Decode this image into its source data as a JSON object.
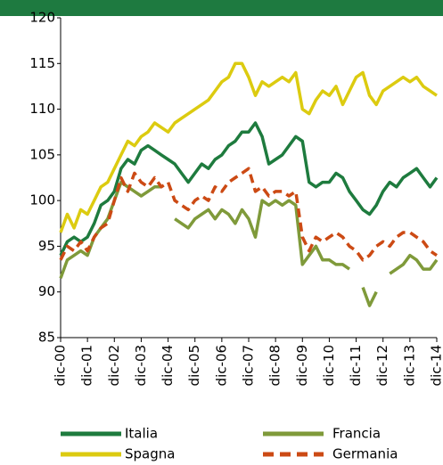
{
  "chart_data": {
    "type": "line",
    "x": [
      "2000-12",
      "2001-03",
      "2001-06",
      "2001-09",
      "2001-12",
      "2002-03",
      "2002-06",
      "2002-09",
      "2002-12",
      "2003-03",
      "2003-06",
      "2003-09",
      "2003-12",
      "2004-03",
      "2004-06",
      "2004-09",
      "2004-12",
      "2005-03",
      "2005-06",
      "2005-09",
      "2005-12",
      "2006-03",
      "2006-06",
      "2006-09",
      "2006-12",
      "2007-03",
      "2007-06",
      "2007-09",
      "2007-12",
      "2008-03",
      "2008-06",
      "2008-09",
      "2008-12",
      "2009-03",
      "2009-06",
      "2009-09",
      "2009-12",
      "2010-03",
      "2010-06",
      "2010-09",
      "2010-12",
      "2011-03",
      "2011-06",
      "2011-09",
      "2011-12",
      "2012-03",
      "2012-06",
      "2012-09",
      "2012-12",
      "2013-03",
      "2013-06",
      "2013-09",
      "2013-12",
      "2014-03",
      "2014-06",
      "2014-09",
      "2014-12"
    ],
    "series": [
      {
        "name": "Italia",
        "color": "#1e7b3e",
        "values": [
          94,
          95.5,
          96,
          95.5,
          96,
          97.5,
          99.5,
          100,
          101,
          103.5,
          104.5,
          104,
          105.5,
          106,
          105.5,
          105,
          104.5,
          104,
          103,
          102,
          103,
          104,
          103.5,
          104.5,
          105,
          106,
          106.5,
          107.5,
          107.5,
          108.5,
          107,
          104,
          104.5,
          105,
          106,
          107,
          106.5,
          102,
          101.5,
          102,
          102,
          103,
          102.5,
          101,
          100,
          99,
          98.5,
          99.5,
          101,
          102,
          101.5,
          102.5,
          103,
          103.5,
          102.5,
          101.5,
          102.5
        ]
      },
      {
        "name": "Francia",
        "color": "#7f9a3a",
        "values": [
          91.5,
          93.5,
          94,
          94.5,
          94,
          96,
          97,
          98,
          100,
          102,
          101.5,
          101,
          100.5,
          101,
          101.5,
          101.5,
          null,
          98,
          97.5,
          97,
          98,
          98.5,
          99,
          98,
          99,
          98.5,
          97.5,
          99,
          98,
          96,
          100,
          99.5,
          100,
          99.5,
          100,
          99.5,
          93,
          94,
          95,
          93.5,
          93.5,
          93,
          93,
          92.5,
          null,
          90.5,
          88.5,
          90,
          null,
          92,
          92.5,
          93,
          94,
          93.5,
          92.5,
          92.5,
          93.5
        ]
      },
      {
        "name": "Spagna",
        "color": "#dccb10",
        "values": [
          96.5,
          98.5,
          97,
          99,
          98.5,
          100,
          101.5,
          102,
          103.5,
          105,
          106.5,
          106,
          107,
          107.5,
          108.5,
          108,
          107.5,
          108.5,
          109,
          109.5,
          110,
          110.5,
          111,
          112,
          113,
          113.5,
          115,
          115,
          113.5,
          111.5,
          113,
          112.5,
          113,
          113.5,
          113,
          114,
          110,
          109.5,
          111,
          112,
          111.5,
          112.5,
          110.5,
          112,
          113.5,
          114,
          111.5,
          110.5,
          112,
          112.5,
          113,
          113.5,
          113,
          113.5,
          112.5,
          112,
          111.5
        ]
      },
      {
        "name": "Germania",
        "color": "#cc4a14",
        "dashed": true,
        "values": [
          93.5,
          95,
          94.5,
          95.5,
          94.5,
          96,
          97,
          97.5,
          100,
          102.5,
          101,
          103,
          102,
          101.5,
          102.5,
          101.5,
          102,
          100,
          99.5,
          99,
          100,
          100.5,
          100,
          101.5,
          101,
          102,
          102.5,
          103,
          103.5,
          101,
          101.5,
          100.5,
          101,
          101,
          100.5,
          101,
          96,
          94.5,
          96,
          95.5,
          96,
          96.5,
          96,
          95,
          94.5,
          93.5,
          94,
          95,
          95.5,
          95,
          96,
          96.5,
          96.5,
          96,
          95.5,
          94.5,
          94
        ]
      }
    ],
    "xlim": [
      "2000-12",
      "2014-12"
    ],
    "xticks": [
      {
        "value": "2000-12",
        "label": "dic-00"
      },
      {
        "value": "2001-12",
        "label": "dic-01"
      },
      {
        "value": "2002-12",
        "label": "dic-02"
      },
      {
        "value": "2003-12",
        "label": "dic-03"
      },
      {
        "value": "2004-12",
        "label": "dic-04"
      },
      {
        "value": "2005-12",
        "label": "dic-05"
      },
      {
        "value": "2006-12",
        "label": "dic-06"
      },
      {
        "value": "2007-12",
        "label": "dic-07"
      },
      {
        "value": "2008-12",
        "label": "dic-08"
      },
      {
        "value": "2009-12",
        "label": "dic-09"
      },
      {
        "value": "2010-12",
        "label": "dic-10"
      },
      {
        "value": "2011-12",
        "label": "dic-11"
      },
      {
        "value": "2012-12",
        "label": "dic-12"
      },
      {
        "value": "2013-12",
        "label": "dic-13"
      },
      {
        "value": "2014-12",
        "label": "dic-14"
      }
    ],
    "ylim": [
      85,
      120
    ],
    "yticks": [
      85,
      90,
      95,
      100,
      105,
      110,
      115,
      120
    ],
    "grid": false,
    "legend": "bottom"
  }
}
